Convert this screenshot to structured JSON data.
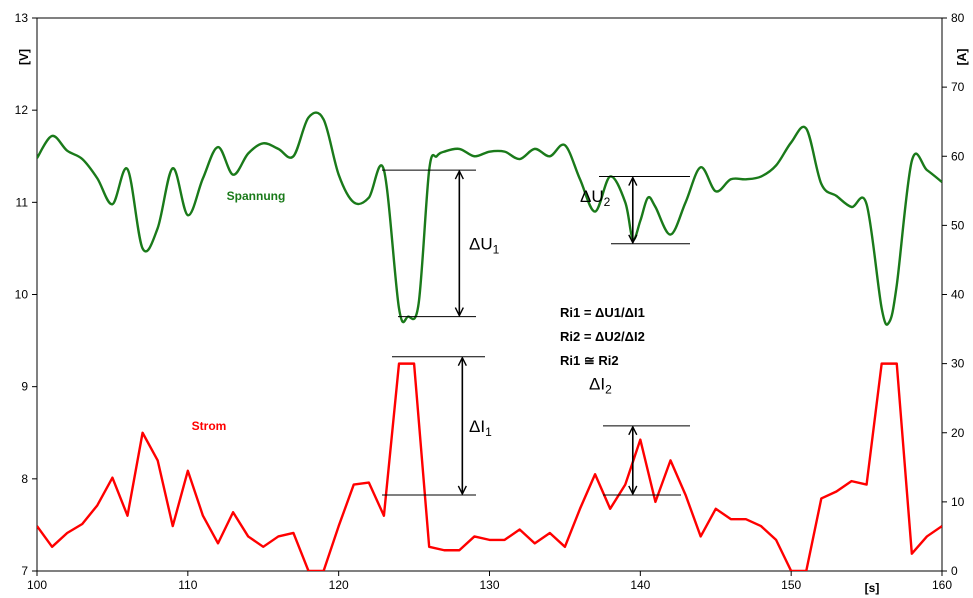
{
  "chart_data": {
    "type": "line",
    "xlabel": "[s]",
    "ylabel_left": "[V]",
    "ylabel_right": "[A]",
    "xlim": [
      100,
      160
    ],
    "ylim_left": [
      7,
      13
    ],
    "ylim_right": [
      0,
      80
    ],
    "x_ticks": [
      100,
      110,
      120,
      130,
      140,
      150,
      160
    ],
    "y_left_ticks": [
      7,
      8,
      9,
      10,
      11,
      12,
      13
    ],
    "y_right_ticks": [
      0,
      10,
      20,
      30,
      40,
      50,
      60,
      70,
      80
    ],
    "grid": false,
    "series": [
      {
        "name": "Spannung",
        "axis": "left",
        "color": "#1a7a1a",
        "smooth": true,
        "x": [
          100,
          101,
          102,
          103,
          104,
          105,
          106,
          107,
          108,
          109,
          110,
          111,
          112,
          113,
          114,
          115,
          116,
          117,
          118,
          119,
          120,
          121,
          122,
          123,
          124,
          124.6,
          125.3,
          126,
          126.5,
          127,
          128,
          129,
          130,
          131,
          132,
          133,
          134,
          135,
          136,
          137,
          138,
          139,
          139.5,
          140,
          140.5,
          141,
          142,
          143,
          144,
          145,
          146,
          147,
          148,
          149,
          150,
          151,
          152,
          153,
          154,
          155,
          156,
          156.5,
          157,
          158,
          159,
          160
        ],
        "y": [
          11.48,
          11.72,
          11.56,
          11.47,
          11.26,
          10.98,
          11.36,
          10.5,
          10.72,
          11.37,
          10.86,
          11.26,
          11.6,
          11.3,
          11.53,
          11.64,
          11.58,
          11.5,
          11.92,
          11.9,
          11.3,
          11.0,
          11.05,
          11.35,
          9.85,
          9.76,
          9.9,
          11.35,
          11.5,
          11.55,
          11.58,
          11.5,
          11.55,
          11.55,
          11.47,
          11.58,
          11.5,
          11.62,
          11.25,
          10.9,
          11.28,
          11.0,
          10.6,
          10.8,
          11.05,
          10.95,
          10.65,
          11.0,
          11.38,
          11.12,
          11.25,
          11.25,
          11.28,
          11.4,
          11.65,
          11.8,
          11.2,
          11.07,
          10.95,
          10.98,
          9.85,
          9.7,
          10.1,
          11.45,
          11.35,
          11.22
        ]
      },
      {
        "name": "Strom",
        "axis": "right",
        "color": "#ff0000",
        "smooth": false,
        "x": [
          100,
          101,
          102,
          103,
          104,
          105,
          106,
          107,
          108,
          109,
          110,
          111,
          112,
          113,
          114,
          115,
          116,
          117,
          118,
          119,
          120,
          121,
          122,
          123,
          124,
          125,
          126,
          127,
          128,
          129,
          130,
          131,
          132,
          133,
          134,
          135,
          136,
          137,
          138,
          139,
          140,
          141,
          142,
          143,
          144,
          145,
          146,
          147,
          148,
          149,
          150,
          151,
          152,
          153,
          154,
          155,
          156,
          157,
          158,
          159,
          160
        ],
        "y": [
          6.5,
          3.5,
          5.5,
          6.8,
          9.5,
          13.5,
          8.0,
          20.0,
          16.0,
          6.5,
          14.5,
          8.0,
          4.0,
          8.5,
          5.0,
          3.5,
          5.0,
          5.5,
          0,
          0,
          6.5,
          12.5,
          12.8,
          8.0,
          30.0,
          30.0,
          3.5,
          3.0,
          3.0,
          5.0,
          4.5,
          4.5,
          6.0,
          4.0,
          5.5,
          3.5,
          9.0,
          14.0,
          9.0,
          12.5,
          19.0,
          10.0,
          16.0,
          11.0,
          5.0,
          9.0,
          7.5,
          7.5,
          6.5,
          4.5,
          0,
          0,
          10.5,
          11.5,
          13.0,
          12.5,
          30.0,
          30.0,
          2.5,
          5.0,
          6.5
        ]
      }
    ],
    "annotations": {
      "labels": [
        {
          "text": "Spannung"
        },
        {
          "text": "Strom"
        }
      ],
      "formulas": [
        "Ri1 = ΔU1/ΔI1",
        "Ri2 = ΔU2/ΔI2",
        "Ri1 ≅ Ri2"
      ],
      "deltas": [
        {
          "main": "ΔU",
          "sub": "1",
          "axis": "left",
          "from": 9.76,
          "to": 11.35,
          "x": 128
        },
        {
          "main": "ΔU",
          "sub": "2",
          "axis": "left",
          "from": 10.55,
          "to": 11.28,
          "x": 139.5
        },
        {
          "main": "ΔI",
          "sub": "1",
          "axis": "right",
          "from": 11.0,
          "to": 31.0,
          "x": 128
        },
        {
          "main": "ΔI",
          "sub": "2",
          "axis": "right",
          "from": 11.0,
          "to": 21.0,
          "x": 139.5
        }
      ]
    }
  }
}
